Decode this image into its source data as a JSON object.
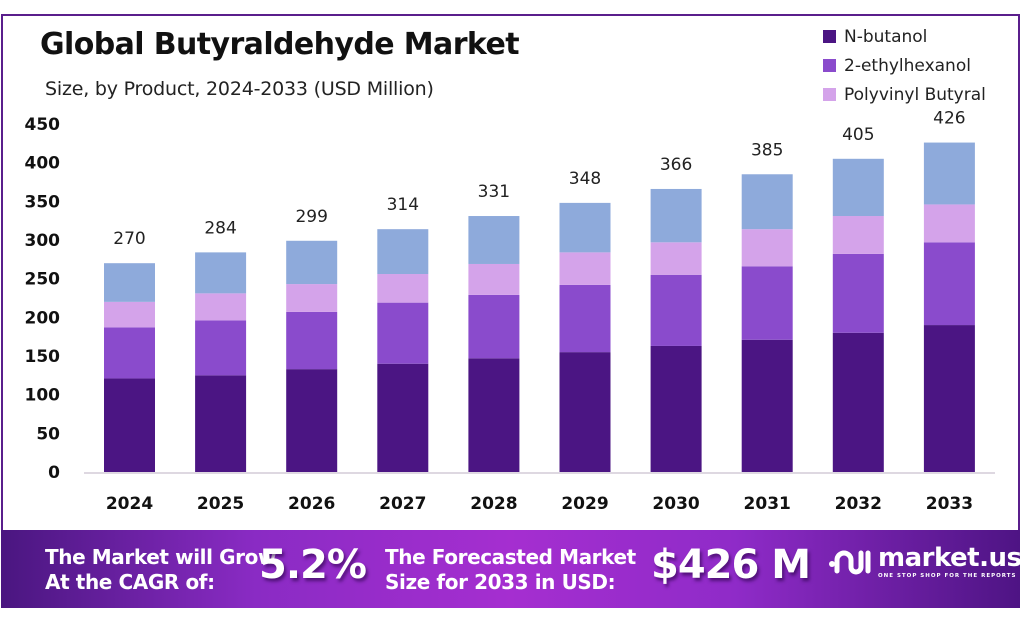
{
  "footer": {
    "cagr_label_line1": "The Market will Grow",
    "cagr_label_line2": "At the CAGR of:",
    "cagr_value": "5.2%",
    "forecast_label_line1": "The Forecasted Market",
    "forecast_label_line2": "Size for 2033 in USD:",
    "forecast_value": "$426 M"
  },
  "logo": {
    "name": "market.us",
    "tagline": "ONE STOP SHOP FOR THE REPORTS"
  },
  "chart_data": {
    "type": "bar",
    "stacked": true,
    "title": "Global Butyraldehyde Market",
    "subtitle": "Size, by Product, 2024-2033 (USD Million)",
    "xlabel": "",
    "ylabel": "",
    "categories": [
      "2024",
      "2025",
      "2026",
      "2027",
      "2028",
      "2029",
      "2030",
      "2031",
      "2032",
      "2033"
    ],
    "totals": [
      270,
      284,
      299,
      314,
      331,
      348,
      366,
      385,
      405,
      426
    ],
    "series": [
      {
        "name": "N-butanol",
        "color": "#4b1583",
        "values": [
          121,
          125,
          133,
          140,
          147,
          155,
          163,
          171,
          180,
          190
        ]
      },
      {
        "name": "2-ethylhexanol",
        "color": "#8a4bcc",
        "values": [
          66,
          71,
          74,
          79,
          82,
          87,
          92,
          95,
          102,
          107
        ]
      },
      {
        "name": "Polyvinyl Butyral",
        "color": "#d4a3ea",
        "values": [
          33,
          35,
          36,
          37,
          40,
          42,
          42,
          48,
          49,
          49
        ]
      },
      {
        "name": "",
        "color": "#8eaadb",
        "values": [
          50,
          53,
          56,
          58,
          62,
          64,
          69,
          71,
          74,
          80
        ]
      }
    ],
    "legend_entries": [
      "N-butanol",
      "2-ethylhexanol",
      "Polyvinyl Butyral"
    ],
    "legend_position": "top-right",
    "yticks": [
      0,
      50,
      100,
      150,
      200,
      250,
      300,
      350,
      400,
      450
    ],
    "ylim": [
      0,
      450
    ],
    "grid": false
  }
}
